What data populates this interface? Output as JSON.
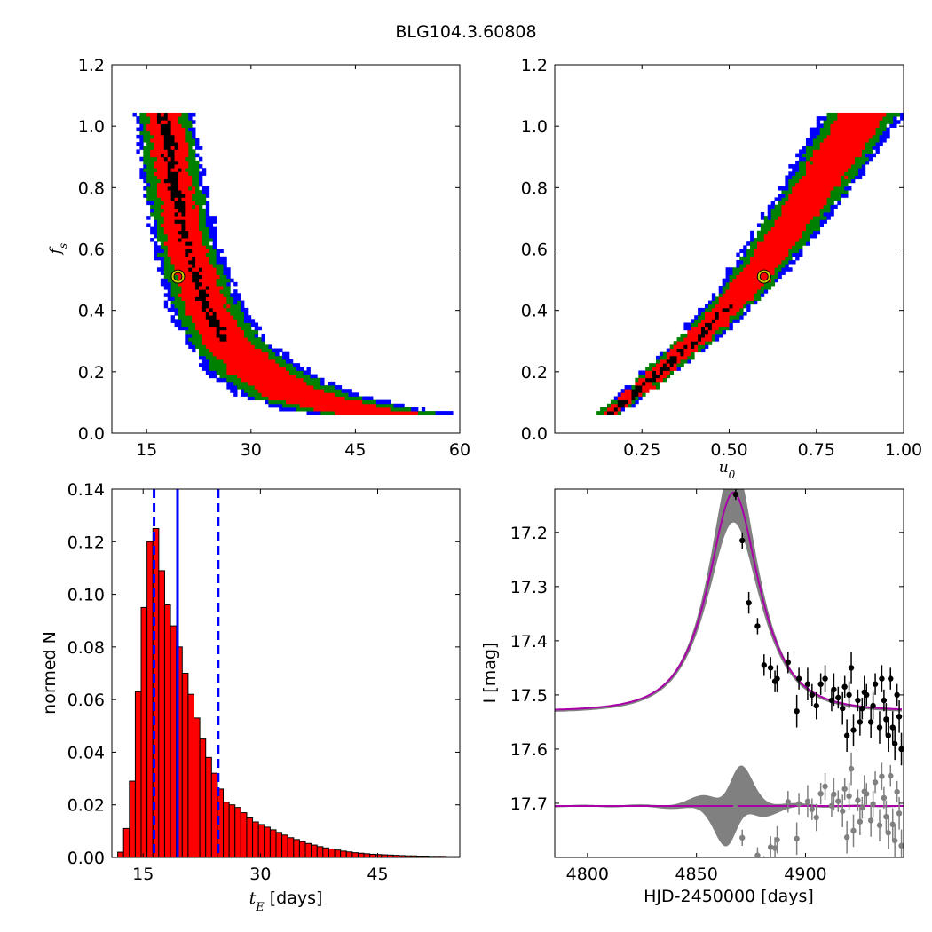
{
  "figure_title": "BLG104.3.60808",
  "chart_data": [
    {
      "id": "tE_vs_fs",
      "type": "heatmap",
      "title": "",
      "xlabel": "",
      "ylabel": "f_s",
      "xlim": [
        10,
        60
      ],
      "ylim": [
        0.0,
        1.2
      ],
      "xticks": [
        "15",
        "30",
        "45",
        "60"
      ],
      "yticks": [
        "0.0",
        "0.2",
        "0.4",
        "0.6",
        "0.8",
        "1.0",
        "1.2"
      ],
      "confidence_colors": {
        "1sigma": "#000000",
        "2sigma": "#ff0000",
        "3sigma": "#008000",
        "4sigma": "#0000ff"
      },
      "best_fit": {
        "x": 19.5,
        "y": 0.51,
        "marker_color": "#c8c800"
      },
      "band": {
        "fs_range": [
          0.06,
          1.04
        ],
        "center_tE": [
          [
            1.04,
            17.5
          ],
          [
            0.8,
            19.0
          ],
          [
            0.6,
            20.8
          ],
          [
            0.4,
            23.8
          ],
          [
            0.3,
            26.5
          ],
          [
            0.2,
            31.0
          ],
          [
            0.12,
            37.0
          ],
          [
            0.08,
            44.0
          ],
          [
            0.06,
            50.0
          ]
        ],
        "halfwidth_red": [
          [
            1.04,
            2.3
          ],
          [
            0.6,
            2.6
          ],
          [
            0.3,
            3.3
          ],
          [
            0.15,
            4.6
          ],
          [
            0.06,
            6.0
          ]
        ],
        "halfwidth_green": [
          [
            1.04,
            3.5
          ],
          [
            0.6,
            3.9
          ],
          [
            0.3,
            5.0
          ],
          [
            0.15,
            6.8
          ],
          [
            0.06,
            8.5
          ]
        ],
        "halfwidth_blue": [
          [
            1.04,
            4.2
          ],
          [
            0.6,
            4.8
          ],
          [
            0.3,
            6.0
          ],
          [
            0.15,
            8.5
          ],
          [
            0.06,
            11.0
          ]
        ],
        "halfwidth_black": [
          [
            1.04,
            0.9
          ],
          [
            0.8,
            0.8
          ],
          [
            0.6,
            0.6
          ],
          [
            0.4,
            0.8
          ],
          [
            0.32,
            0.9
          ],
          [
            0.28,
            0.0
          ]
        ]
      }
    },
    {
      "id": "u0_vs_fs",
      "type": "heatmap",
      "title": "",
      "xlabel": "u_0",
      "ylabel": "",
      "xlim": [
        0.0,
        1.0
      ],
      "ylim": [
        0.0,
        1.2
      ],
      "xticks": [
        "0.25",
        "0.50",
        "0.75",
        "1.00"
      ],
      "yticks": [
        "0.0",
        "0.2",
        "0.4",
        "0.6",
        "0.8",
        "1.0",
        "1.2"
      ],
      "best_fit": {
        "x": 0.6,
        "y": 0.51,
        "marker_color": "#c8c800"
      },
      "band": {
        "fs_range": [
          0.06,
          1.04
        ],
        "center_u0": [
          [
            0.06,
            0.15
          ],
          [
            0.15,
            0.25
          ],
          [
            0.3,
            0.4
          ],
          [
            0.45,
            0.53
          ],
          [
            0.6,
            0.63
          ],
          [
            0.8,
            0.75
          ],
          [
            1.04,
            0.88
          ]
        ],
        "halfwidth_red": [
          [
            0.06,
            0.02
          ],
          [
            0.3,
            0.04
          ],
          [
            0.6,
            0.05
          ],
          [
            1.04,
            0.07
          ]
        ],
        "halfwidth_green": [
          [
            0.06,
            0.03
          ],
          [
            0.3,
            0.05
          ],
          [
            0.6,
            0.075
          ],
          [
            1.04,
            0.1
          ]
        ],
        "halfwidth_blue": [
          [
            0.06,
            0.035
          ],
          [
            0.3,
            0.06
          ],
          [
            0.6,
            0.09
          ],
          [
            1.04,
            0.12
          ]
        ],
        "halfwidth_black": [
          [
            0.08,
            0.012
          ],
          [
            0.25,
            0.014
          ],
          [
            0.4,
            0.012
          ],
          [
            0.42,
            0.0
          ]
        ]
      }
    },
    {
      "id": "tE_histogram",
      "type": "bar",
      "title": "",
      "xlabel": "t_E [days]",
      "ylabel": "normed N",
      "xlim": [
        11,
        55.5
      ],
      "ylim": [
        0.0,
        0.14
      ],
      "xticks": [
        "15",
        "30",
        "45"
      ],
      "yticks": [
        "0.00",
        "0.02",
        "0.04",
        "0.06",
        "0.08",
        "0.10",
        "0.12",
        "0.14"
      ],
      "bin_width": 0.75,
      "bin_start": 11.75,
      "values": [
        0.002,
        0.011,
        0.029,
        0.063,
        0.095,
        0.12,
        0.125,
        0.109,
        0.096,
        0.088,
        0.08,
        0.07,
        0.062,
        0.053,
        0.045,
        0.038,
        0.032,
        0.026,
        0.021,
        0.02,
        0.019,
        0.017,
        0.015,
        0.0135,
        0.0125,
        0.0115,
        0.0105,
        0.0095,
        0.0085,
        0.0075,
        0.0068,
        0.006,
        0.0053,
        0.0047,
        0.0041,
        0.0036,
        0.0032,
        0.0028,
        0.0024,
        0.0021,
        0.0018,
        0.0016,
        0.0014,
        0.0012,
        0.0011,
        0.001,
        0.0009,
        0.0008,
        0.0007,
        0.0006,
        0.0006,
        0.0005,
        0.0005,
        0.0004,
        0.0004,
        0.0004,
        0.0003,
        0.0003,
        0.0003
      ],
      "bar_color": "#ff0000",
      "vlines": [
        {
          "x": 19.4,
          "style": "solid",
          "color": "#0000ff"
        },
        {
          "x": 16.4,
          "style": "dashed",
          "color": "#0000ff"
        },
        {
          "x": 24.6,
          "style": "dashed",
          "color": "#0000ff"
        }
      ]
    },
    {
      "id": "light_curve",
      "type": "line",
      "title": "",
      "xlabel": "HJD-2450000 [days]",
      "ylabel": "I [mag]",
      "xlim": [
        4785,
        4945
      ],
      "ylim": [
        17.8,
        17.12
      ],
      "xticks": [
        "4800",
        "4850",
        "4900"
      ],
      "yticks": [
        "17.2",
        "17.3",
        "17.4",
        "17.5",
        "17.6",
        "17.7"
      ],
      "model": {
        "t0": 4867,
        "tE": 19.5,
        "u0": 0.6,
        "fs": 0.51,
        "baseline_mag": 17.53,
        "color": "#aa00aa"
      },
      "residual_offset": 17.705,
      "uncertainty_band_color": "#808080",
      "data_color": "#000000",
      "residual_color": "#808080",
      "data": [
        [
          4868,
          17.13,
          0.01
        ],
        [
          4871,
          17.215,
          0.015
        ],
        [
          4874,
          17.33,
          0.02
        ],
        [
          4878,
          17.373,
          0.015
        ],
        [
          4881,
          17.445,
          0.02
        ],
        [
          4884,
          17.45,
          0.02
        ],
        [
          4886,
          17.475,
          0.02
        ],
        [
          4887,
          17.47,
          0.025
        ],
        [
          4892,
          17.44,
          0.02
        ],
        [
          4896,
          17.53,
          0.03
        ],
        [
          4897,
          17.47,
          0.02
        ],
        [
          4901,
          17.48,
          0.03
        ],
        [
          4903,
          17.5,
          0.02
        ],
        [
          4905,
          17.52,
          0.025
        ],
        [
          4907,
          17.48,
          0.02
        ],
        [
          4909,
          17.47,
          0.025
        ],
        [
          4912,
          17.51,
          0.02
        ],
        [
          4913,
          17.49,
          0.03
        ],
        [
          4915,
          17.505,
          0.02
        ],
        [
          4917,
          17.525,
          0.03
        ],
        [
          4918,
          17.485,
          0.02
        ],
        [
          4919,
          17.575,
          0.03
        ],
        [
          4920,
          17.5,
          0.025
        ],
        [
          4921,
          17.45,
          0.03
        ],
        [
          4922,
          17.565,
          0.03
        ],
        [
          4924,
          17.51,
          0.02
        ],
        [
          4925,
          17.55,
          0.025
        ],
        [
          4926,
          17.525,
          0.02
        ],
        [
          4927,
          17.495,
          0.03
        ],
        [
          4928,
          17.5,
          0.02
        ],
        [
          4930,
          17.55,
          0.03
        ],
        [
          4931,
          17.52,
          0.025
        ],
        [
          4932,
          17.48,
          0.02
        ],
        [
          4934,
          17.56,
          0.03
        ],
        [
          4935,
          17.47,
          0.025
        ],
        [
          4936,
          17.51,
          0.02
        ],
        [
          4937,
          17.545,
          0.03
        ],
        [
          4938,
          17.575,
          0.03
        ],
        [
          4939,
          17.47,
          0.02
        ],
        [
          4940,
          17.56,
          0.03
        ],
        [
          4941,
          17.59,
          0.03
        ],
        [
          4942,
          17.5,
          0.02
        ],
        [
          4943,
          17.54,
          0.03
        ],
        [
          4944,
          17.6,
          0.03
        ]
      ]
    }
  ]
}
